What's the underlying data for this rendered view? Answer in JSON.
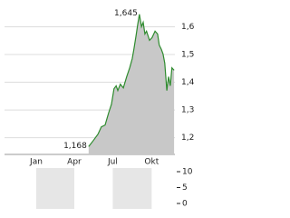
{
  "chart_data": [
    {
      "type": "area",
      "color": "#2e8b2e",
      "fill": "#c8c8c8",
      "grid": true,
      "x": [
        199,
        210,
        221,
        229,
        238,
        246,
        253,
        259,
        264,
        268,
        274,
        281,
        289,
        296,
        302,
        306,
        311,
        315,
        319,
        324,
        328,
        332,
        336,
        343,
        349,
        356,
        362,
        366,
        371,
        375,
        379,
        384,
        388,
        392,
        396,
        401
      ],
      "values": [
        1.168,
        1.19,
        1.213,
        1.239,
        1.246,
        1.289,
        1.321,
        1.377,
        1.387,
        1.37,
        1.393,
        1.38,
        1.42,
        1.452,
        1.485,
        1.518,
        1.567,
        1.607,
        1.645,
        1.6,
        1.616,
        1.574,
        1.584,
        1.551,
        1.561,
        1.584,
        1.574,
        1.534,
        1.518,
        1.502,
        1.469,
        1.37,
        1.42,
        1.387,
        1.452,
        1.443
      ],
      "xlim": [
        0,
        403
      ],
      "xticks": [
        {
          "value": 75,
          "label": "Jan"
        },
        {
          "value": 165,
          "label": "Apr"
        },
        {
          "value": 256,
          "label": "Jul"
        },
        {
          "value": 348,
          "label": "Okt"
        }
      ],
      "ylim": [
        1.14,
        1.68
      ],
      "yticks": [
        {
          "value": 1.2,
          "label": "1,2"
        },
        {
          "value": 1.3,
          "label": "1,3"
        },
        {
          "value": 1.4,
          "label": "1,4"
        },
        {
          "value": 1.5,
          "label": "1,5"
        },
        {
          "value": 1.6,
          "label": "1,6"
        }
      ],
      "annotations": [
        {
          "x": 319,
          "value": 1.645,
          "label": "1,645"
        },
        {
          "x": 199,
          "value": 1.168,
          "label": "1,168"
        }
      ]
    },
    {
      "type": "bar",
      "ylim": [
        0,
        10
      ],
      "yticks": [
        10,
        5,
        0
      ]
    }
  ]
}
